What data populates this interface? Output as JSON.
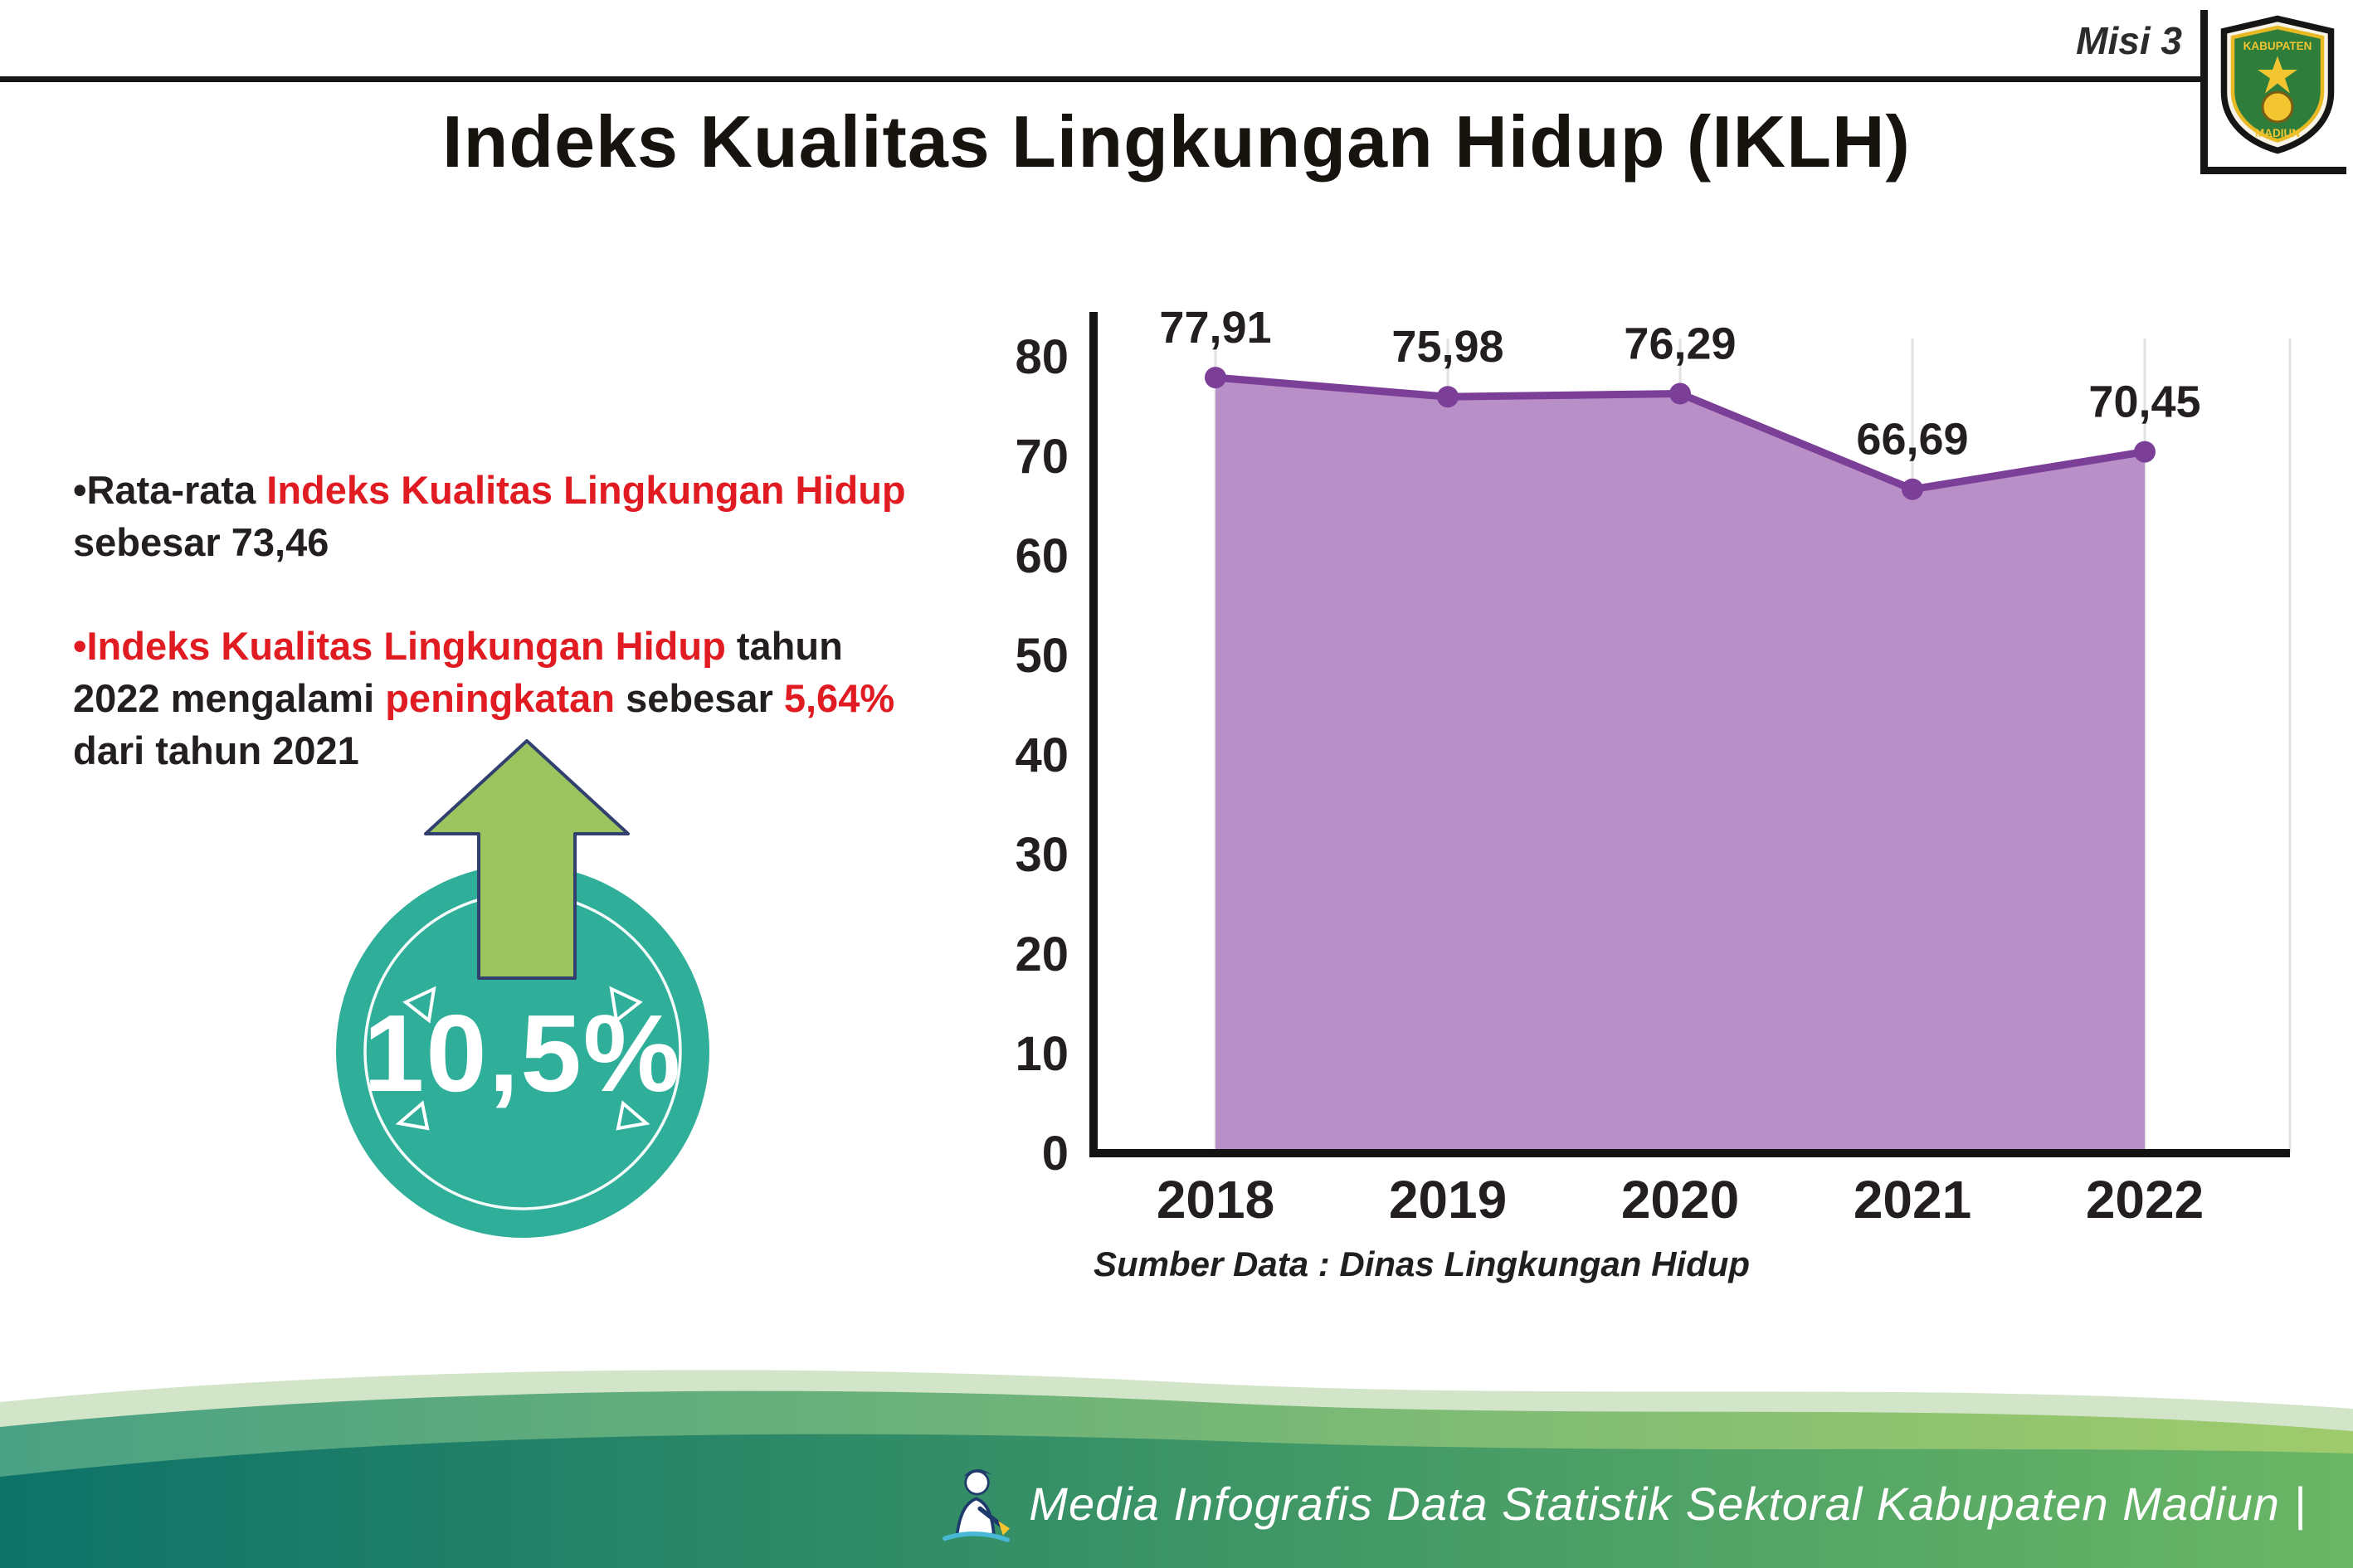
{
  "header": {
    "misi_label": "Misi 3",
    "logo_text_top": "KABUPATEN",
    "logo_text_bottom": "MADIUN"
  },
  "title": "Indeks Kualitas Lingkungan Hidup (IKLH)",
  "bullets": [
    {
      "bullet": "•",
      "segments": [
        {
          "text": "Rata-rata "
        },
        {
          "text": "Indeks Kualitas Lingkungan Hidup"
        },
        {
          "text": " sebesar 73,46"
        }
      ]
    },
    {
      "bullet": "•",
      "segments": [
        {
          "text": "Indeks Kualitas Lingkungan Hidup"
        },
        {
          "text": " tahun 2022 mengalami "
        },
        {
          "text": "peningkatan"
        },
        {
          "text": " sebesar "
        },
        {
          "text": "5,64%"
        },
        {
          "text": " dari tahun 2021"
        }
      ]
    }
  ],
  "badge": {
    "value": "10,5%",
    "circle_color": "#2fae99",
    "arrow_color": "#9cc45f"
  },
  "chart_data": {
    "type": "area",
    "title": "Indeks Kualitas Lingkungan Hidup (IKLH)",
    "categories": [
      "2018",
      "2019",
      "2020",
      "2021",
      "2022"
    ],
    "values": [
      77.91,
      75.98,
      76.29,
      66.69,
      70.45
    ],
    "value_labels": [
      "77,91",
      "75,98",
      "76,29",
      "66,69",
      "70,45"
    ],
    "yticks": [
      0,
      10,
      20,
      30,
      40,
      50,
      60,
      70,
      80
    ],
    "ylim": [
      0,
      80
    ],
    "xlabel": "",
    "ylabel": "",
    "grid": "vertical-light",
    "legend": "none",
    "fill_color": "#b98fc7",
    "line_color": "#7b3f98",
    "source": "Sumber Data : Dinas Lingkungan Hidup"
  },
  "footer": {
    "text": "Media Infografis Data Statistik Sektoral Kabupaten Madiun |"
  },
  "colors": {
    "red": "#e11b22",
    "dark_text": "#231f20",
    "footer_teal": "#0d7268",
    "footer_green": "#6ab665"
  }
}
